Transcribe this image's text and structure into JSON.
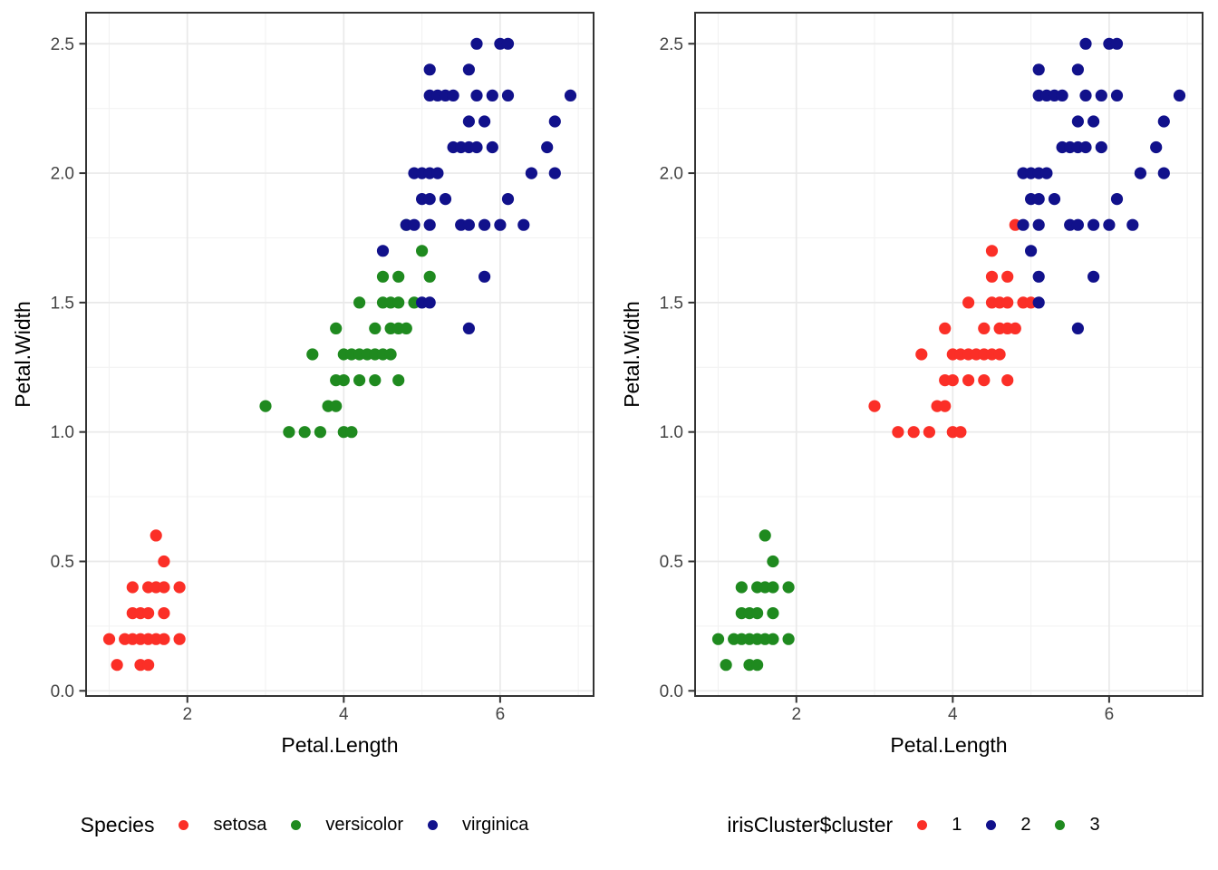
{
  "colors": {
    "red": "#FB2F27",
    "green": "#1F8A1F",
    "navy": "#11118B",
    "grid_major": "#E9E9E9",
    "grid_minor": "#F2F2F2",
    "panel_border": "#333333",
    "tick_mark": "#333333",
    "tick_label": "#444444",
    "axis_title": "#000000"
  },
  "chart_data": [
    {
      "type": "scatter",
      "xlabel": "Petal.Length",
      "ylabel": "Petal.Width",
      "xlim": [
        0.705,
        7.195
      ],
      "ylim": [
        -0.02,
        2.62
      ],
      "x_ticks": [
        {
          "v": 2,
          "label": "2"
        },
        {
          "v": 4,
          "label": "4"
        },
        {
          "v": 6,
          "label": "6"
        }
      ],
      "y_ticks": [
        {
          "v": 0,
          "label": "0.0"
        },
        {
          "v": 0.5,
          "label": "0.5"
        },
        {
          "v": 1,
          "label": "1.0"
        },
        {
          "v": 1.5,
          "label": "1.5"
        },
        {
          "v": 2,
          "label": "2.0"
        },
        {
          "v": 2.5,
          "label": "2.5"
        }
      ],
      "x_minor": [
        1,
        3,
        5,
        7
      ],
      "y_minor": [
        0.25,
        0.75,
        1.25,
        1.75,
        2.25
      ],
      "grid": true,
      "legend": {
        "title": "Species",
        "position": "bottom",
        "entries": [
          {
            "label": "setosa",
            "color": "#FB2F27"
          },
          {
            "label": "versicolor",
            "color": "#1F8A1F"
          },
          {
            "label": "virginica",
            "color": "#11118B"
          }
        ]
      },
      "series": [
        {
          "name": "setosa",
          "color": "#FB2F27",
          "points": [
            [
              1.0,
              0.2
            ],
            [
              1.1,
              0.1
            ],
            [
              1.2,
              0.2
            ],
            [
              1.3,
              0.2
            ],
            [
              1.3,
              0.3
            ],
            [
              1.3,
              0.4
            ],
            [
              1.4,
              0.1
            ],
            [
              1.4,
              0.2
            ],
            [
              1.4,
              0.3
            ],
            [
              1.5,
              0.1
            ],
            [
              1.5,
              0.2
            ],
            [
              1.5,
              0.3
            ],
            [
              1.5,
              0.4
            ],
            [
              1.6,
              0.2
            ],
            [
              1.6,
              0.4
            ],
            [
              1.6,
              0.6
            ],
            [
              1.7,
              0.2
            ],
            [
              1.7,
              0.3
            ],
            [
              1.7,
              0.4
            ],
            [
              1.7,
              0.5
            ],
            [
              1.9,
              0.2
            ],
            [
              1.9,
              0.4
            ]
          ]
        },
        {
          "name": "versicolor",
          "color": "#1F8A1F",
          "points": [
            [
              3.0,
              1.1
            ],
            [
              3.3,
              1.0
            ],
            [
              3.5,
              1.0
            ],
            [
              3.6,
              1.3
            ],
            [
              3.7,
              1.0
            ],
            [
              3.8,
              1.1
            ],
            [
              3.9,
              1.1
            ],
            [
              3.9,
              1.2
            ],
            [
              3.9,
              1.4
            ],
            [
              4.0,
              1.0
            ],
            [
              4.0,
              1.2
            ],
            [
              4.0,
              1.3
            ],
            [
              4.1,
              1.0
            ],
            [
              4.1,
              1.3
            ],
            [
              4.2,
              1.2
            ],
            [
              4.2,
              1.3
            ],
            [
              4.2,
              1.5
            ],
            [
              4.3,
              1.3
            ],
            [
              4.4,
              1.2
            ],
            [
              4.4,
              1.3
            ],
            [
              4.4,
              1.4
            ],
            [
              4.5,
              1.3
            ],
            [
              4.5,
              1.5
            ],
            [
              4.5,
              1.6
            ],
            [
              4.6,
              1.3
            ],
            [
              4.6,
              1.4
            ],
            [
              4.6,
              1.5
            ],
            [
              4.7,
              1.2
            ],
            [
              4.7,
              1.4
            ],
            [
              4.7,
              1.5
            ],
            [
              4.7,
              1.6
            ],
            [
              4.8,
              1.4
            ],
            [
              4.8,
              1.8
            ],
            [
              4.9,
              1.5
            ],
            [
              5.0,
              1.7
            ],
            [
              5.1,
              1.6
            ]
          ]
        },
        {
          "name": "virginica",
          "color": "#11118B",
          "points": [
            [
              4.5,
              1.7
            ],
            [
              4.8,
              1.8
            ],
            [
              4.9,
              1.8
            ],
            [
              4.9,
              2.0
            ],
            [
              5.0,
              1.5
            ],
            [
              5.0,
              1.9
            ],
            [
              5.0,
              2.0
            ],
            [
              5.1,
              1.5
            ],
            [
              5.1,
              1.8
            ],
            [
              5.1,
              1.9
            ],
            [
              5.1,
              2.0
            ],
            [
              5.1,
              2.3
            ],
            [
              5.1,
              2.4
            ],
            [
              5.2,
              2.0
            ],
            [
              5.2,
              2.3
            ],
            [
              5.3,
              1.9
            ],
            [
              5.3,
              2.3
            ],
            [
              5.4,
              2.1
            ],
            [
              5.4,
              2.3
            ],
            [
              5.5,
              1.8
            ],
            [
              5.5,
              2.1
            ],
            [
              5.6,
              1.4
            ],
            [
              5.6,
              1.8
            ],
            [
              5.6,
              2.1
            ],
            [
              5.6,
              2.2
            ],
            [
              5.6,
              2.4
            ],
            [
              5.7,
              2.1
            ],
            [
              5.7,
              2.3
            ],
            [
              5.7,
              2.5
            ],
            [
              5.8,
              1.6
            ],
            [
              5.8,
              1.8
            ],
            [
              5.8,
              2.2
            ],
            [
              5.9,
              2.1
            ],
            [
              5.9,
              2.3
            ],
            [
              6.0,
              1.8
            ],
            [
              6.0,
              2.5
            ],
            [
              6.1,
              1.9
            ],
            [
              6.1,
              2.3
            ],
            [
              6.1,
              2.5
            ],
            [
              6.3,
              1.8
            ],
            [
              6.4,
              2.0
            ],
            [
              6.6,
              2.1
            ],
            [
              6.7,
              2.0
            ],
            [
              6.7,
              2.2
            ],
            [
              6.9,
              2.3
            ]
          ]
        }
      ]
    },
    {
      "type": "scatter",
      "xlabel": "Petal.Length",
      "ylabel": "Petal.Width",
      "xlim": [
        0.705,
        7.195
      ],
      "ylim": [
        -0.02,
        2.62
      ],
      "x_ticks": [
        {
          "v": 2,
          "label": "2"
        },
        {
          "v": 4,
          "label": "4"
        },
        {
          "v": 6,
          "label": "6"
        }
      ],
      "y_ticks": [
        {
          "v": 0,
          "label": "0.0"
        },
        {
          "v": 0.5,
          "label": "0.5"
        },
        {
          "v": 1,
          "label": "1.0"
        },
        {
          "v": 1.5,
          "label": "1.5"
        },
        {
          "v": 2,
          "label": "2.0"
        },
        {
          "v": 2.5,
          "label": "2.5"
        }
      ],
      "x_minor": [
        1,
        3,
        5,
        7
      ],
      "y_minor": [
        0.25,
        0.75,
        1.25,
        1.75,
        2.25
      ],
      "grid": true,
      "legend": {
        "title": "irisCluster$cluster",
        "position": "bottom",
        "entries": [
          {
            "label": "1",
            "color": "#FB2F27"
          },
          {
            "label": "2",
            "color": "#11118B"
          },
          {
            "label": "3",
            "color": "#1F8A1F"
          }
        ]
      },
      "series": [
        {
          "name": "1",
          "color": "#FB2F27",
          "points": [
            [
              3.0,
              1.1
            ],
            [
              3.3,
              1.0
            ],
            [
              3.5,
              1.0
            ],
            [
              3.6,
              1.3
            ],
            [
              3.7,
              1.0
            ],
            [
              3.8,
              1.1
            ],
            [
              3.9,
              1.1
            ],
            [
              3.9,
              1.2
            ],
            [
              3.9,
              1.4
            ],
            [
              4.0,
              1.0
            ],
            [
              4.0,
              1.2
            ],
            [
              4.0,
              1.3
            ],
            [
              4.1,
              1.0
            ],
            [
              4.1,
              1.3
            ],
            [
              4.2,
              1.2
            ],
            [
              4.2,
              1.3
            ],
            [
              4.2,
              1.5
            ],
            [
              4.3,
              1.3
            ],
            [
              4.4,
              1.2
            ],
            [
              4.4,
              1.3
            ],
            [
              4.4,
              1.4
            ],
            [
              4.5,
              1.3
            ],
            [
              4.5,
              1.5
            ],
            [
              4.5,
              1.6
            ],
            [
              4.5,
              1.7
            ],
            [
              4.6,
              1.3
            ],
            [
              4.6,
              1.4
            ],
            [
              4.6,
              1.5
            ],
            [
              4.7,
              1.2
            ],
            [
              4.7,
              1.4
            ],
            [
              4.7,
              1.5
            ],
            [
              4.7,
              1.6
            ],
            [
              4.8,
              1.4
            ],
            [
              4.8,
              1.8
            ],
            [
              4.9,
              1.5
            ],
            [
              5.0,
              1.5
            ]
          ]
        },
        {
          "name": "2",
          "color": "#11118B",
          "points": [
            [
              4.9,
              1.8
            ],
            [
              4.9,
              2.0
            ],
            [
              5.0,
              1.7
            ],
            [
              5.0,
              1.9
            ],
            [
              5.0,
              2.0
            ],
            [
              5.1,
              1.5
            ],
            [
              5.1,
              1.6
            ],
            [
              5.1,
              1.8
            ],
            [
              5.1,
              1.9
            ],
            [
              5.1,
              2.0
            ],
            [
              5.1,
              2.3
            ],
            [
              5.1,
              2.4
            ],
            [
              5.2,
              2.0
            ],
            [
              5.2,
              2.3
            ],
            [
              5.3,
              1.9
            ],
            [
              5.3,
              2.3
            ],
            [
              5.4,
              2.1
            ],
            [
              5.4,
              2.3
            ],
            [
              5.5,
              1.8
            ],
            [
              5.5,
              2.1
            ],
            [
              5.6,
              1.4
            ],
            [
              5.6,
              1.8
            ],
            [
              5.6,
              2.1
            ],
            [
              5.6,
              2.2
            ],
            [
              5.6,
              2.4
            ],
            [
              5.7,
              2.1
            ],
            [
              5.7,
              2.3
            ],
            [
              5.7,
              2.5
            ],
            [
              5.8,
              1.6
            ],
            [
              5.8,
              1.8
            ],
            [
              5.8,
              2.2
            ],
            [
              5.9,
              2.1
            ],
            [
              5.9,
              2.3
            ],
            [
              6.0,
              1.8
            ],
            [
              6.0,
              2.5
            ],
            [
              6.1,
              1.9
            ],
            [
              6.1,
              2.3
            ],
            [
              6.1,
              2.5
            ],
            [
              6.3,
              1.8
            ],
            [
              6.4,
              2.0
            ],
            [
              6.6,
              2.1
            ],
            [
              6.7,
              2.0
            ],
            [
              6.7,
              2.2
            ],
            [
              6.9,
              2.3
            ]
          ]
        },
        {
          "name": "3",
          "color": "#1F8A1F",
          "points": [
            [
              1.0,
              0.2
            ],
            [
              1.1,
              0.1
            ],
            [
              1.2,
              0.2
            ],
            [
              1.3,
              0.2
            ],
            [
              1.3,
              0.3
            ],
            [
              1.3,
              0.4
            ],
            [
              1.4,
              0.1
            ],
            [
              1.4,
              0.2
            ],
            [
              1.4,
              0.3
            ],
            [
              1.5,
              0.1
            ],
            [
              1.5,
              0.2
            ],
            [
              1.5,
              0.3
            ],
            [
              1.5,
              0.4
            ],
            [
              1.6,
              0.2
            ],
            [
              1.6,
              0.4
            ],
            [
              1.6,
              0.6
            ],
            [
              1.7,
              0.2
            ],
            [
              1.7,
              0.3
            ],
            [
              1.7,
              0.4
            ],
            [
              1.7,
              0.5
            ],
            [
              1.9,
              0.2
            ],
            [
              1.9,
              0.4
            ]
          ]
        }
      ]
    }
  ]
}
